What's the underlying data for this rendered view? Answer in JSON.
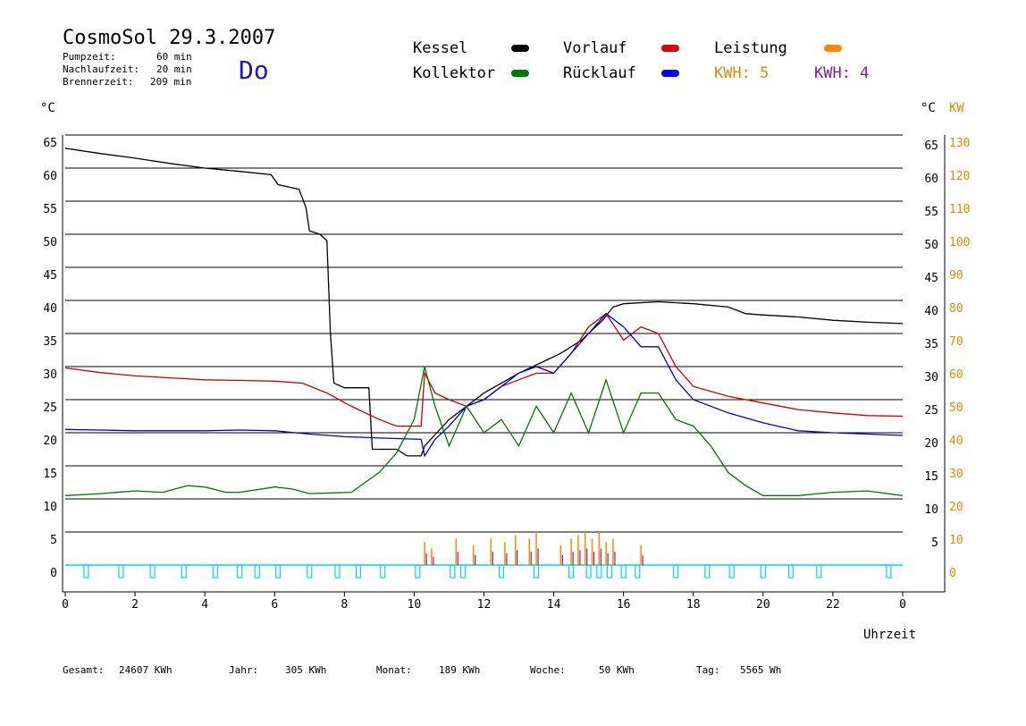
{
  "header": {
    "title": "CosmoSol 29.3.2007",
    "day": "Do",
    "info": [
      {
        "label": "Pumpzeit:",
        "value": "60 min"
      },
      {
        "label": "Nachlaufzeit:",
        "value": "20 min"
      },
      {
        "label": "Brennerzeit:",
        "value": "209 min"
      }
    ]
  },
  "legend": {
    "items": [
      {
        "label": "Kessel",
        "color": "#000000"
      },
      {
        "label": "Vorlauf",
        "color": "#dd0000"
      },
      {
        "label": "Leistung",
        "color": "#ff8800"
      },
      {
        "label": "Kollektor",
        "color": "#007700"
      },
      {
        "label": "Rücklauf",
        "color": "#0000ee"
      }
    ],
    "kwh_orange": "KWH: 5",
    "kwh_purple": "KWH: 4",
    "kwh_orange_color": "#e08a00",
    "kwh_purple_color": "#7a2088"
  },
  "axes": {
    "y_left_unit": "°C",
    "y_right_unit": "°C",
    "y_right2_unit": "KW",
    "x_label": "Uhrzeit",
    "y_ticks": [
      0,
      5,
      10,
      15,
      20,
      25,
      30,
      35,
      40,
      45,
      50,
      55,
      60,
      65
    ],
    "y2_ticks": [
      0,
      10,
      20,
      30,
      40,
      50,
      60,
      70,
      80,
      90,
      100,
      110,
      120,
      130
    ],
    "x_ticks": [
      "0",
      "2",
      "4",
      "6",
      "8",
      "10",
      "12",
      "14",
      "16",
      "18",
      "20",
      "22",
      "0"
    ]
  },
  "footer": [
    {
      "label": "Gesamt:",
      "value": "24607 KWh"
    },
    {
      "label": "Jahr:",
      "value": "305 KWh"
    },
    {
      "label": "Monat:",
      "value": "189 KWh"
    },
    {
      "label": "Woche:",
      "value": "50 KWh"
    },
    {
      "label": "Tag:",
      "value": "5565 Wh"
    }
  ],
  "chart_data": {
    "type": "line",
    "title": "CosmoSol 29.3.2007",
    "xlabel": "Uhrzeit",
    "ylabel": "°C",
    "y2label": "KW",
    "xlim": [
      0,
      24
    ],
    "ylim": [
      0,
      65
    ],
    "y2lim": [
      0,
      130
    ],
    "grid": true,
    "legend_position": "top-right",
    "series": [
      {
        "name": "Kessel",
        "color": "#000000",
        "points": [
          [
            0,
            63
          ],
          [
            1,
            62.2
          ],
          [
            2,
            61.5
          ],
          [
            3,
            60.7
          ],
          [
            4,
            60
          ],
          [
            5,
            59.5
          ],
          [
            5.9,
            59
          ],
          [
            6.1,
            57.5
          ],
          [
            6.7,
            56.8
          ],
          [
            6.9,
            54
          ],
          [
            7.0,
            50.5
          ],
          [
            7.3,
            50
          ],
          [
            7.5,
            49
          ],
          [
            7.6,
            35
          ],
          [
            7.7,
            27.5
          ],
          [
            8,
            26.8
          ],
          [
            8.7,
            26.8
          ],
          [
            8.8,
            17.5
          ],
          [
            9.5,
            17.5
          ],
          [
            9.8,
            16.5
          ],
          [
            10.2,
            16.5
          ],
          [
            10.3,
            18
          ],
          [
            11,
            22
          ],
          [
            12,
            26
          ],
          [
            13,
            29
          ],
          [
            13.8,
            31
          ],
          [
            14.2,
            32
          ],
          [
            14.8,
            34
          ],
          [
            15.4,
            37
          ],
          [
            15.7,
            39
          ],
          [
            16,
            39.5
          ],
          [
            17,
            39.8
          ],
          [
            18,
            39.5
          ],
          [
            19,
            39
          ],
          [
            19.5,
            38
          ],
          [
            20,
            37.8
          ],
          [
            21,
            37.5
          ],
          [
            22,
            37
          ],
          [
            23,
            36.7
          ],
          [
            24,
            36.5
          ]
        ]
      },
      {
        "name": "Vorlauf",
        "color": "#cc0000",
        "points": [
          [
            0,
            29.8
          ],
          [
            1,
            29.1
          ],
          [
            2,
            28.6
          ],
          [
            3,
            28.3
          ],
          [
            4,
            28
          ],
          [
            5,
            27.9
          ],
          [
            6,
            27.8
          ],
          [
            6.8,
            27.5
          ],
          [
            7.5,
            26
          ],
          [
            8.2,
            24
          ],
          [
            9,
            22
          ],
          [
            9.5,
            21
          ],
          [
            10.2,
            21
          ],
          [
            10.3,
            29
          ],
          [
            10.6,
            26
          ],
          [
            11,
            25
          ],
          [
            11.5,
            24
          ],
          [
            12,
            25
          ],
          [
            12.5,
            27
          ],
          [
            13,
            28
          ],
          [
            13.5,
            29
          ],
          [
            14,
            29
          ],
          [
            14.5,
            32
          ],
          [
            15,
            36
          ],
          [
            15.5,
            38
          ],
          [
            16,
            34
          ],
          [
            16.5,
            36
          ],
          [
            17,
            35
          ],
          [
            17.5,
            30
          ],
          [
            18,
            27
          ],
          [
            19,
            25.5
          ],
          [
            20,
            24.5
          ],
          [
            21,
            23.5
          ],
          [
            22,
            23
          ],
          [
            23,
            22.6
          ],
          [
            24,
            22.5
          ]
        ]
      },
      {
        "name": "Rücklauf",
        "color": "#0000cc",
        "points": [
          [
            0,
            20.5
          ],
          [
            1,
            20.4
          ],
          [
            2,
            20.3
          ],
          [
            3,
            20.3
          ],
          [
            4,
            20.3
          ],
          [
            5,
            20.4
          ],
          [
            6,
            20.3
          ],
          [
            7,
            19.8
          ],
          [
            8,
            19.4
          ],
          [
            9,
            19.2
          ],
          [
            10.2,
            19
          ],
          [
            10.3,
            16.5
          ],
          [
            10.6,
            19
          ],
          [
            11,
            21
          ],
          [
            11.5,
            24
          ],
          [
            12,
            25
          ],
          [
            12.5,
            27
          ],
          [
            13,
            29
          ],
          [
            13.5,
            30
          ],
          [
            14,
            29
          ],
          [
            14.5,
            32
          ],
          [
            15,
            35
          ],
          [
            15.5,
            38
          ],
          [
            16,
            36
          ],
          [
            16.5,
            33
          ],
          [
            17,
            33
          ],
          [
            17.5,
            28
          ],
          [
            18,
            25
          ],
          [
            19,
            23
          ],
          [
            20,
            21.5
          ],
          [
            21,
            20.3
          ],
          [
            22,
            20
          ],
          [
            23,
            19.8
          ],
          [
            24,
            19.6
          ]
        ]
      },
      {
        "name": "Kollektor",
        "color": "#007700",
        "points": [
          [
            0,
            10.5
          ],
          [
            1,
            10.8
          ],
          [
            2,
            11.2
          ],
          [
            2.8,
            11
          ],
          [
            3.5,
            12
          ],
          [
            4,
            11.8
          ],
          [
            4.6,
            11
          ],
          [
            5,
            11
          ],
          [
            6,
            11.8
          ],
          [
            6.5,
            11.5
          ],
          [
            7,
            10.8
          ],
          [
            8.2,
            11
          ],
          [
            9,
            14
          ],
          [
            9.5,
            17
          ],
          [
            10,
            22
          ],
          [
            10.3,
            30
          ],
          [
            10.6,
            24
          ],
          [
            11,
            18
          ],
          [
            11.5,
            24
          ],
          [
            12,
            20
          ],
          [
            12.5,
            22
          ],
          [
            13,
            18
          ],
          [
            13.5,
            24
          ],
          [
            14,
            20
          ],
          [
            14.5,
            26
          ],
          [
            15,
            20
          ],
          [
            15.5,
            28
          ],
          [
            16,
            20
          ],
          [
            16.5,
            26
          ],
          [
            17,
            26
          ],
          [
            17.5,
            22
          ],
          [
            18,
            21
          ],
          [
            18.5,
            18
          ],
          [
            19,
            14
          ],
          [
            19.5,
            12
          ],
          [
            20,
            10.5
          ],
          [
            21,
            10.5
          ],
          [
            22,
            11
          ],
          [
            23,
            11.2
          ],
          [
            24,
            10.5
          ]
        ]
      }
    ],
    "power_bars_kw": [
      [
        10.3,
        7
      ],
      [
        10.5,
        5
      ],
      [
        11.2,
        8
      ],
      [
        11.7,
        6
      ],
      [
        12.2,
        8
      ],
      [
        12.6,
        7
      ],
      [
        12.9,
        9
      ],
      [
        13.3,
        8
      ],
      [
        13.5,
        10
      ],
      [
        14.2,
        6
      ],
      [
        14.5,
        8
      ],
      [
        14.7,
        9
      ],
      [
        14.9,
        10
      ],
      [
        15.1,
        8
      ],
      [
        15.3,
        10
      ],
      [
        15.5,
        7
      ],
      [
        15.7,
        8
      ],
      [
        16.5,
        6
      ]
    ],
    "pump_markers_h": [
      0.6,
      1.6,
      2.5,
      3.4,
      4.3,
      5,
      5.5,
      6.1,
      7,
      7.8,
      8.4,
      9.1,
      10.1,
      11.1,
      11.4,
      12.5,
      13.5,
      14.5,
      15,
      15.3,
      15.6,
      16,
      16.4,
      17.5,
      18.4,
      19.1,
      20,
      20.8,
      21.6,
      23.6
    ]
  }
}
